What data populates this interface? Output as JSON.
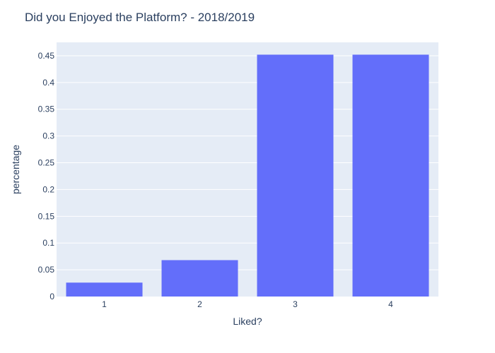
{
  "chart_data": {
    "type": "bar",
    "title": "Did you Enjoyed the Platform?  - 2018/2019",
    "xlabel": "Liked?",
    "ylabel": "percentage",
    "categories": [
      "1",
      "2",
      "3",
      "4"
    ],
    "values": [
      0.026,
      0.068,
      0.452,
      0.452
    ],
    "ylim": [
      0,
      0.475
    ],
    "yticks": [
      0,
      0.05,
      0.1,
      0.15,
      0.2,
      0.25,
      0.3,
      0.35,
      0.4,
      0.45
    ],
    "ytick_labels": [
      "0",
      "0.05",
      "0.1",
      "0.15",
      "0.2",
      "0.25",
      "0.3",
      "0.35",
      "0.4",
      "0.45"
    ],
    "grid": true,
    "colors": {
      "bar": "#636efa",
      "plot_bg": "#e5ecf6",
      "text": "#2a3f5f"
    }
  }
}
